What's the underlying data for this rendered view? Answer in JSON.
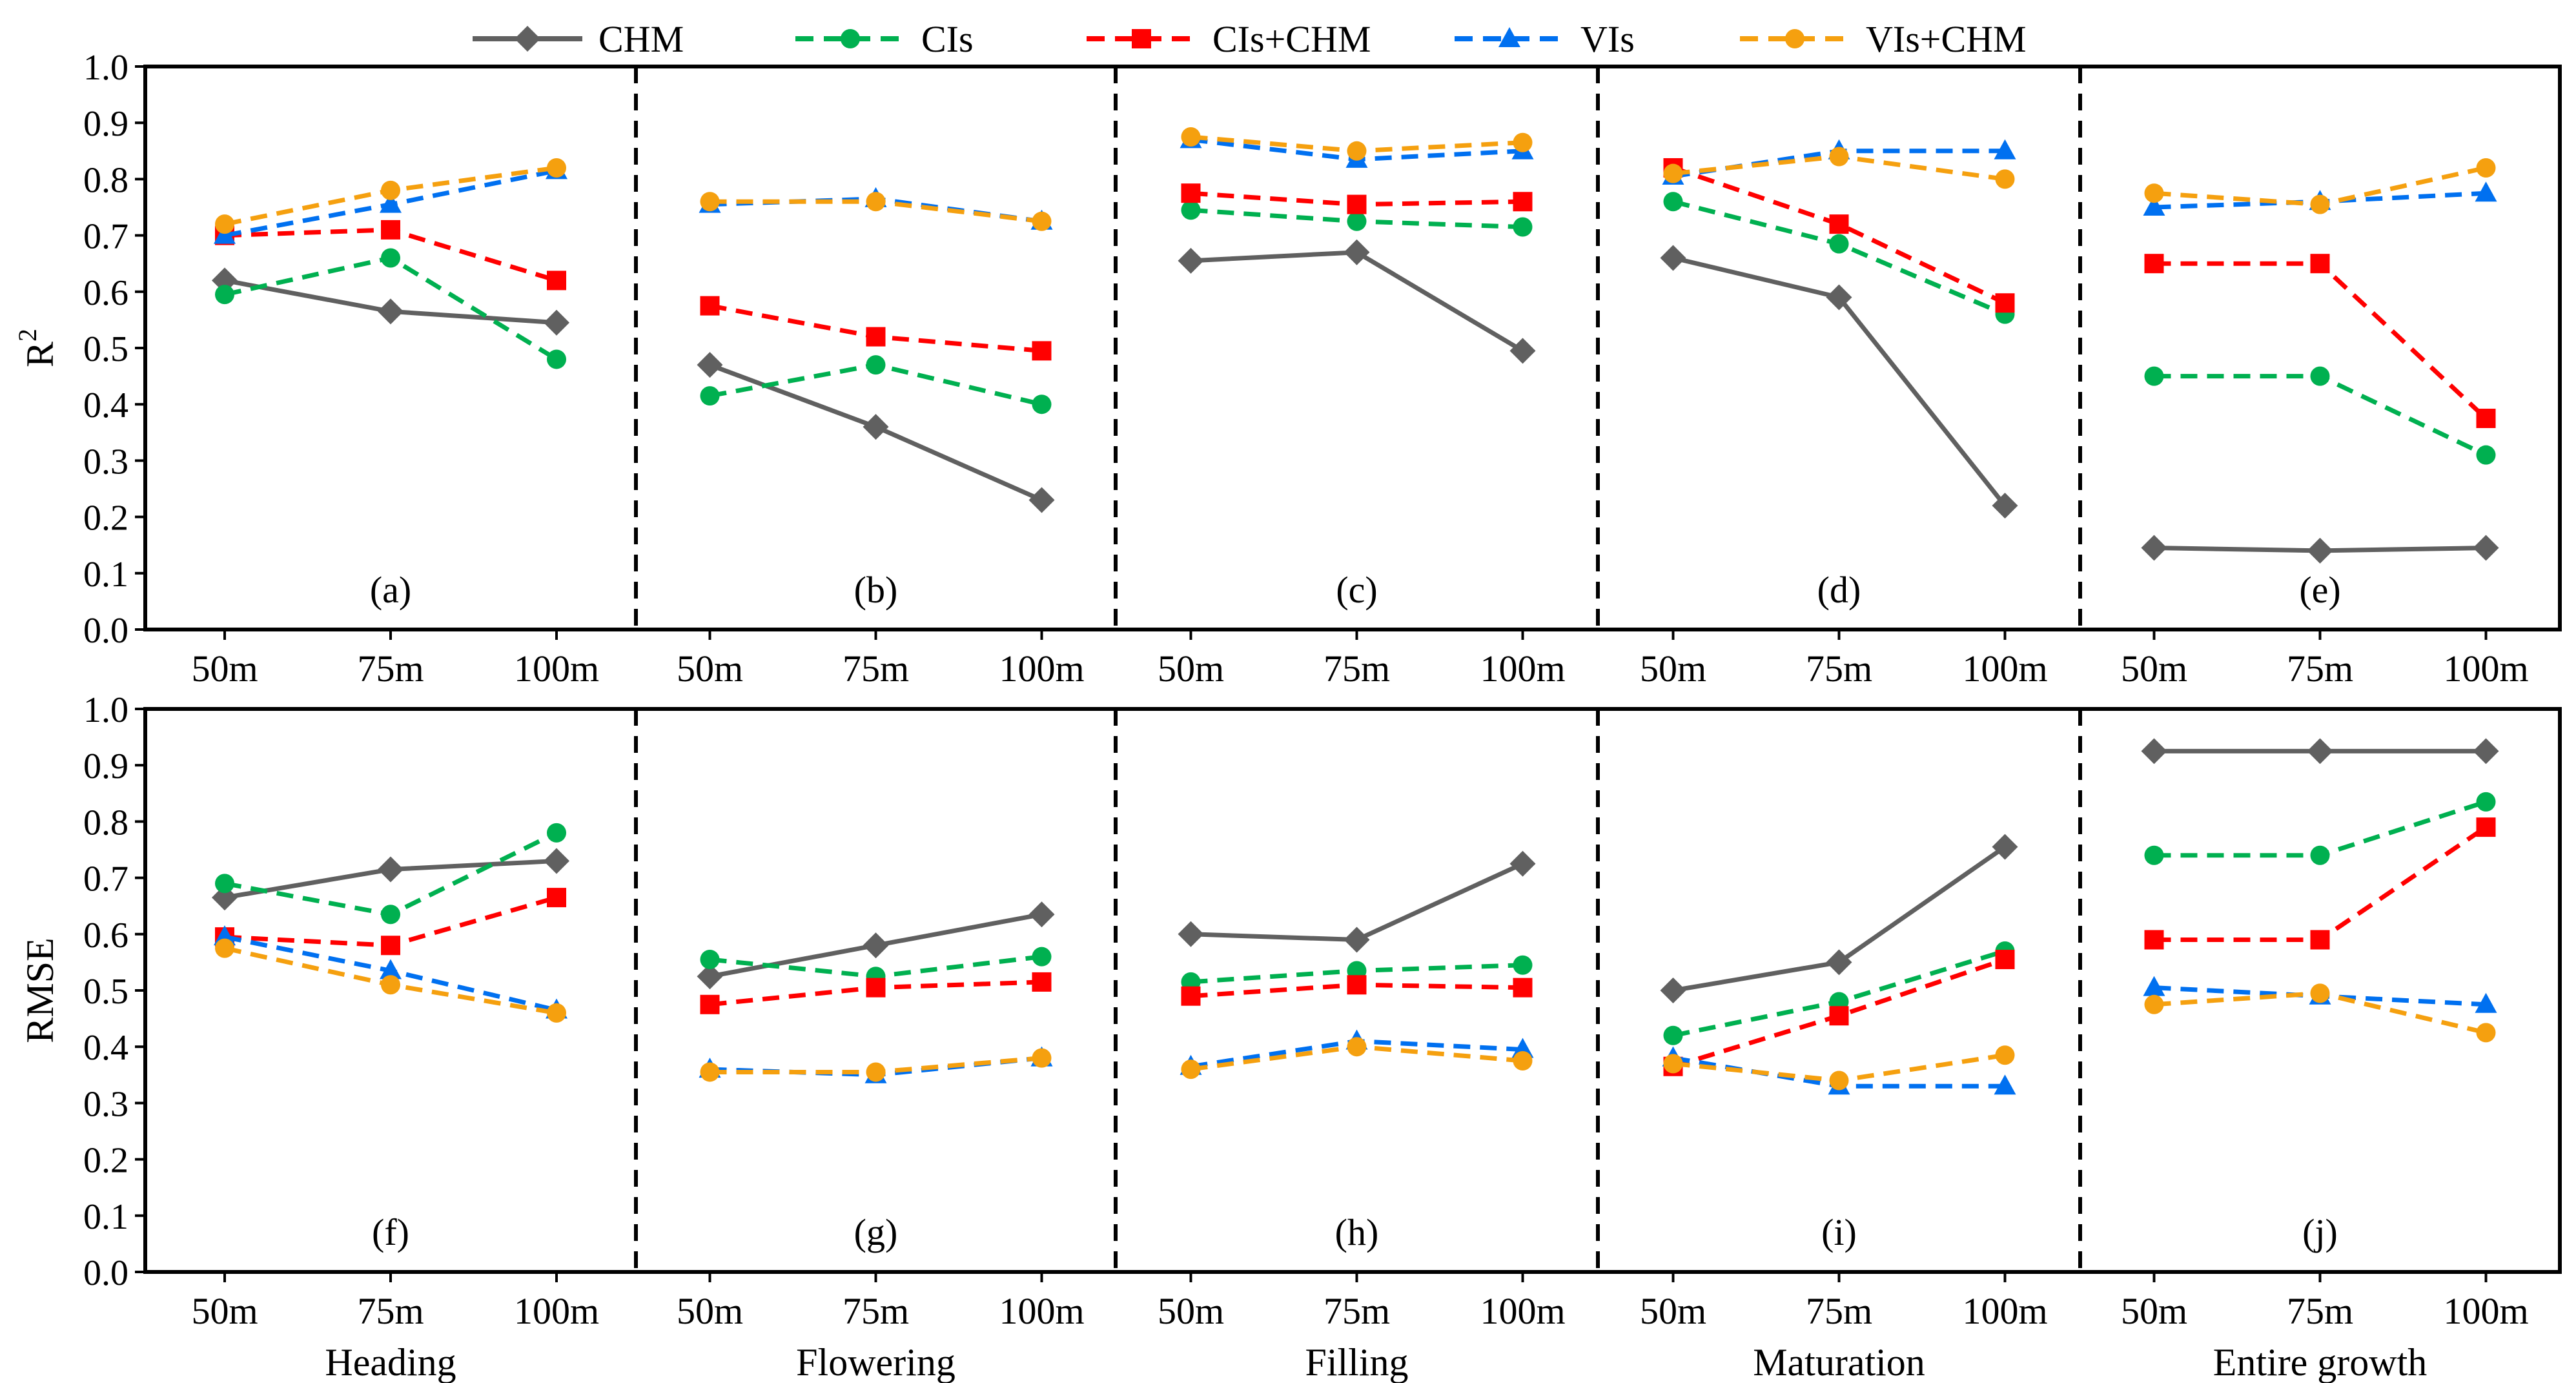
{
  "chart_data": {
    "type": "line",
    "legend": {
      "position": "top-center",
      "entries": [
        {
          "name": "CHM",
          "color": "#606060",
          "marker": "diamond",
          "style": "solid"
        },
        {
          "name": "CIs",
          "color": "#00b050",
          "marker": "circle",
          "style": "dashed"
        },
        {
          "name": "CIs+CHM",
          "color": "#ff0000",
          "marker": "square",
          "style": "dashed"
        },
        {
          "name": "VIs",
          "color": "#0070f0",
          "marker": "triangle",
          "style": "dashed"
        },
        {
          "name": "VIs+CHM",
          "color": "#f5a00f",
          "marker": "circle",
          "style": "dashed"
        }
      ]
    },
    "categories": [
      "50m",
      "75m",
      "100m"
    ],
    "stages": [
      "Heading",
      "Flowering",
      "Filling",
      "Maturation",
      "Entire growth"
    ],
    "rows": [
      {
        "ylabel": "R",
        "ylabel_sup": "2",
        "ylim": [
          0,
          1
        ],
        "yticks": [
          "0.0",
          "0.1",
          "0.2",
          "0.3",
          "0.4",
          "0.5",
          "0.6",
          "0.7",
          "0.8",
          "0.9",
          "1.0"
        ],
        "panels": [
          {
            "label": "(a)",
            "series": {
              "CHM": [
                0.62,
                0.565,
                0.545
              ],
              "CIs": [
                0.595,
                0.66,
                0.48
              ],
              "CIs+CHM": [
                0.7,
                0.71,
                0.62
              ],
              "VIs": [
                0.7,
                0.755,
                0.815
              ],
              "VIs+CHM": [
                0.72,
                0.78,
                0.82
              ]
            }
          },
          {
            "label": "(b)",
            "series": {
              "CHM": [
                0.47,
                0.36,
                0.23
              ],
              "CIs": [
                0.415,
                0.47,
                0.4
              ],
              "CIs+CHM": [
                0.575,
                0.52,
                0.495
              ],
              "VIs": [
                0.755,
                0.765,
                0.725
              ],
              "VIs+CHM": [
                0.76,
                0.76,
                0.725
              ]
            }
          },
          {
            "label": "(c)",
            "series": {
              "CHM": [
                0.655,
                0.67,
                0.495
              ],
              "CIs": [
                0.745,
                0.725,
                0.715
              ],
              "CIs+CHM": [
                0.775,
                0.755,
                0.76
              ],
              "VIs": [
                0.87,
                0.835,
                0.85
              ],
              "VIs+CHM": [
                0.875,
                0.85,
                0.865
              ]
            }
          },
          {
            "label": "(d)",
            "series": {
              "CHM": [
                0.66,
                0.59,
                0.22
              ],
              "CIs": [
                0.76,
                0.685,
                0.56
              ],
              "CIs+CHM": [
                0.82,
                0.72,
                0.58
              ],
              "VIs": [
                0.805,
                0.85,
                0.85
              ],
              "VIs+CHM": [
                0.81,
                0.84,
                0.8
              ]
            }
          },
          {
            "label": "(e)",
            "series": {
              "CHM": [
                0.145,
                0.14,
                0.145
              ],
              "CIs": [
                0.45,
                0.45,
                0.31
              ],
              "CIs+CHM": [
                0.65,
                0.65,
                0.375
              ],
              "VIs": [
                0.75,
                0.76,
                0.775
              ],
              "VIs+CHM": [
                0.775,
                0.755,
                0.82
              ]
            }
          }
        ]
      },
      {
        "ylabel": "RMSE",
        "ylabel_sup": "",
        "ylim": [
          0,
          1
        ],
        "yticks": [
          "0.0",
          "0.1",
          "0.2",
          "0.3",
          "0.4",
          "0.5",
          "0.6",
          "0.7",
          "0.8",
          "0.9",
          "1.0"
        ],
        "panels": [
          {
            "label": "(f)",
            "series": {
              "CHM": [
                0.665,
                0.715,
                0.73
              ],
              "CIs": [
                0.69,
                0.635,
                0.78
              ],
              "CIs+CHM": [
                0.595,
                0.58,
                0.665
              ],
              "VIs": [
                0.595,
                0.535,
                0.465
              ],
              "VIs+CHM": [
                0.575,
                0.51,
                0.46
              ]
            }
          },
          {
            "label": "(g)",
            "series": {
              "CHM": [
                0.525,
                0.58,
                0.635
              ],
              "CIs": [
                0.555,
                0.525,
                0.56
              ],
              "CIs+CHM": [
                0.475,
                0.505,
                0.515
              ],
              "VIs": [
                0.36,
                0.35,
                0.38
              ],
              "VIs+CHM": [
                0.355,
                0.355,
                0.38
              ]
            }
          },
          {
            "label": "(h)",
            "series": {
              "CHM": [
                0.6,
                0.59,
                0.725
              ],
              "CIs": [
                0.515,
                0.535,
                0.545
              ],
              "CIs+CHM": [
                0.49,
                0.51,
                0.505
              ],
              "VIs": [
                0.365,
                0.41,
                0.395
              ],
              "VIs+CHM": [
                0.36,
                0.4,
                0.375
              ]
            }
          },
          {
            "label": "(i)",
            "series": {
              "CHM": [
                0.5,
                0.55,
                0.755
              ],
              "CIs": [
                0.42,
                0.48,
                0.57
              ],
              "CIs+CHM": [
                0.365,
                0.455,
                0.555
              ],
              "VIs": [
                0.38,
                0.33,
                0.33
              ],
              "VIs+CHM": [
                0.37,
                0.34,
                0.385
              ]
            }
          },
          {
            "label": "(j)",
            "series": {
              "CHM": [
                0.925,
                0.925,
                0.925
              ],
              "CIs": [
                0.74,
                0.74,
                0.835
              ],
              "CIs+CHM": [
                0.59,
                0.59,
                0.79
              ],
              "VIs": [
                0.505,
                0.49,
                0.475
              ],
              "VIs+CHM": [
                0.475,
                0.495,
                0.425
              ]
            }
          }
        ]
      }
    ]
  }
}
